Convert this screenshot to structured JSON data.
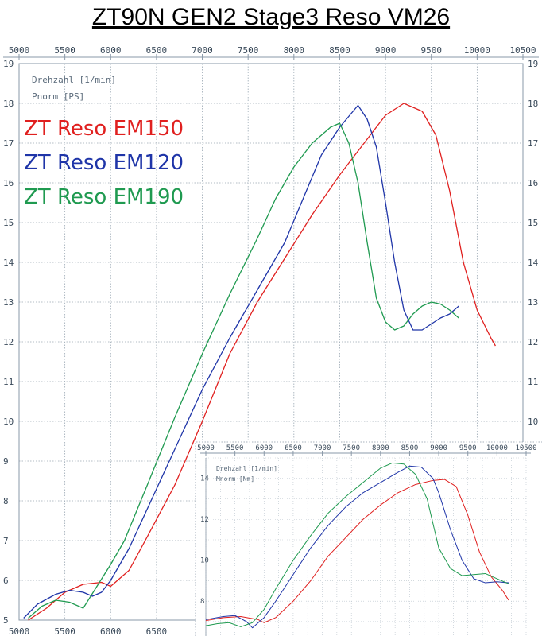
{
  "title": "ZT90N GEN2 Stage3 Reso VM26",
  "chart_data": [
    {
      "name": "power",
      "type": "line",
      "xlabel": "Drehzahl [1/min]",
      "ylabel": "Pnorm [PS]",
      "xlim": [
        5000,
        10500
      ],
      "ylim": [
        5,
        19
      ],
      "x_ticks": [
        5000,
        5500,
        6000,
        6500,
        7000,
        7500,
        8000,
        8500,
        9000,
        9500,
        10000,
        10500
      ],
      "x_ticks_bottom": [
        5000,
        5500,
        6000,
        6500
      ],
      "y_ticks": [
        5,
        6,
        7,
        8,
        9,
        10,
        11,
        12,
        13,
        14,
        15,
        16,
        17,
        18,
        19
      ],
      "y_ticks_right": [
        10,
        11,
        12,
        13,
        14,
        15,
        16,
        17,
        18,
        19
      ],
      "grid": true,
      "series": [
        {
          "name": "ZT Reso EM150",
          "color": "#e0201f",
          "x": [
            5100,
            5300,
            5500,
            5700,
            5900,
            6000,
            6100,
            6200,
            6400,
            6700,
            7000,
            7300,
            7600,
            7900,
            8200,
            8500,
            8800,
            9000,
            9200,
            9400,
            9550,
            9700,
            9850,
            10000,
            10150,
            10200
          ],
          "y": [
            5.0,
            5.3,
            5.7,
            5.9,
            5.95,
            5.85,
            6.05,
            6.25,
            7.1,
            8.4,
            10.0,
            11.7,
            13.0,
            14.1,
            15.2,
            16.2,
            17.1,
            17.7,
            18.0,
            17.8,
            17.2,
            15.8,
            14.0,
            12.8,
            12.1,
            11.9
          ]
        },
        {
          "name": "ZT Reso EM120",
          "color": "#1f35a8",
          "x": [
            5050,
            5200,
            5400,
            5550,
            5700,
            5800,
            5900,
            6000,
            6200,
            6400,
            6700,
            7000,
            7300,
            7600,
            7900,
            8100,
            8300,
            8500,
            8700,
            8800,
            8900,
            9000,
            9100,
            9200,
            9300,
            9400,
            9500,
            9600,
            9700,
            9800
          ],
          "y": [
            5.05,
            5.4,
            5.65,
            5.75,
            5.7,
            5.6,
            5.7,
            6.0,
            6.8,
            7.8,
            9.3,
            10.8,
            12.1,
            13.3,
            14.5,
            15.6,
            16.7,
            17.4,
            17.95,
            17.6,
            16.9,
            15.5,
            14.0,
            12.8,
            12.3,
            12.3,
            12.45,
            12.6,
            12.7,
            12.9
          ]
        },
        {
          "name": "ZT Reso EM190",
          "color": "#1f9a50",
          "x": [
            5100,
            5250,
            5400,
            5550,
            5700,
            5850,
            6000,
            6150,
            6400,
            6700,
            7000,
            7300,
            7600,
            7800,
            8000,
            8200,
            8400,
            8500,
            8600,
            8700,
            8800,
            8900,
            9000,
            9100,
            9200,
            9300,
            9400,
            9500,
            9600,
            9700,
            9800
          ],
          "y": [
            5.05,
            5.35,
            5.5,
            5.45,
            5.3,
            5.85,
            6.4,
            7.0,
            8.4,
            10.1,
            11.7,
            13.2,
            14.6,
            15.6,
            16.4,
            17.0,
            17.4,
            17.5,
            17.0,
            16.0,
            14.5,
            13.1,
            12.5,
            12.3,
            12.4,
            12.7,
            12.9,
            13.0,
            12.95,
            12.8,
            12.6
          ]
        }
      ]
    },
    {
      "name": "torque",
      "type": "line",
      "xlabel": "Drehzahl [1/min]",
      "ylabel": "Mnorm [Nm]",
      "xlim": [
        5000,
        10500
      ],
      "ylim": [
        6.3,
        15
      ],
      "x_ticks": [
        5000,
        5500,
        6000,
        6500,
        7000,
        7500,
        8000,
        8500,
        9000,
        9500,
        10000,
        10500
      ],
      "y_ticks": [
        8,
        10,
        12,
        14
      ],
      "grid": true,
      "series": [
        {
          "name": "ZT Reso EM150",
          "color": "#e0201f",
          "x": [
            5000,
            5300,
            5600,
            5900,
            6000,
            6200,
            6500,
            6800,
            7100,
            7400,
            7700,
            8000,
            8300,
            8600,
            8900,
            9100,
            9300,
            9500,
            9700,
            9900,
            10100,
            10200
          ],
          "y": [
            7.05,
            7.2,
            7.25,
            7.1,
            6.95,
            7.2,
            8.0,
            9.0,
            10.2,
            11.1,
            12.0,
            12.7,
            13.3,
            13.7,
            13.9,
            13.95,
            13.6,
            12.2,
            10.4,
            9.2,
            8.5,
            8.05
          ]
        },
        {
          "name": "ZT Reso EM120",
          "color": "#1f35a8",
          "x": [
            5000,
            5300,
            5500,
            5700,
            5800,
            6000,
            6200,
            6500,
            6800,
            7100,
            7400,
            7700,
            8000,
            8300,
            8500,
            8700,
            8900,
            9000,
            9200,
            9400,
            9600,
            9800,
            10000,
            10200
          ],
          "y": [
            7.1,
            7.25,
            7.3,
            7.0,
            6.7,
            7.2,
            8.0,
            9.3,
            10.6,
            11.7,
            12.6,
            13.3,
            13.8,
            14.3,
            14.6,
            14.55,
            14.0,
            13.3,
            11.5,
            10.0,
            9.1,
            8.9,
            8.95,
            8.9
          ]
        },
        {
          "name": "ZT Reso EM190",
          "color": "#1f9a50",
          "x": [
            5000,
            5200,
            5400,
            5600,
            5800,
            6000,
            6200,
            6500,
            6800,
            7100,
            7400,
            7700,
            8000,
            8200,
            8400,
            8600,
            8800,
            9000,
            9200,
            9400,
            9600,
            9800,
            10000,
            10200
          ],
          "y": [
            6.8,
            6.9,
            6.95,
            6.75,
            6.95,
            7.6,
            8.6,
            10.0,
            11.2,
            12.3,
            13.1,
            13.8,
            14.5,
            14.75,
            14.7,
            14.2,
            13.0,
            10.6,
            9.6,
            9.25,
            9.3,
            9.35,
            9.1,
            8.85
          ]
        }
      ]
    }
  ]
}
